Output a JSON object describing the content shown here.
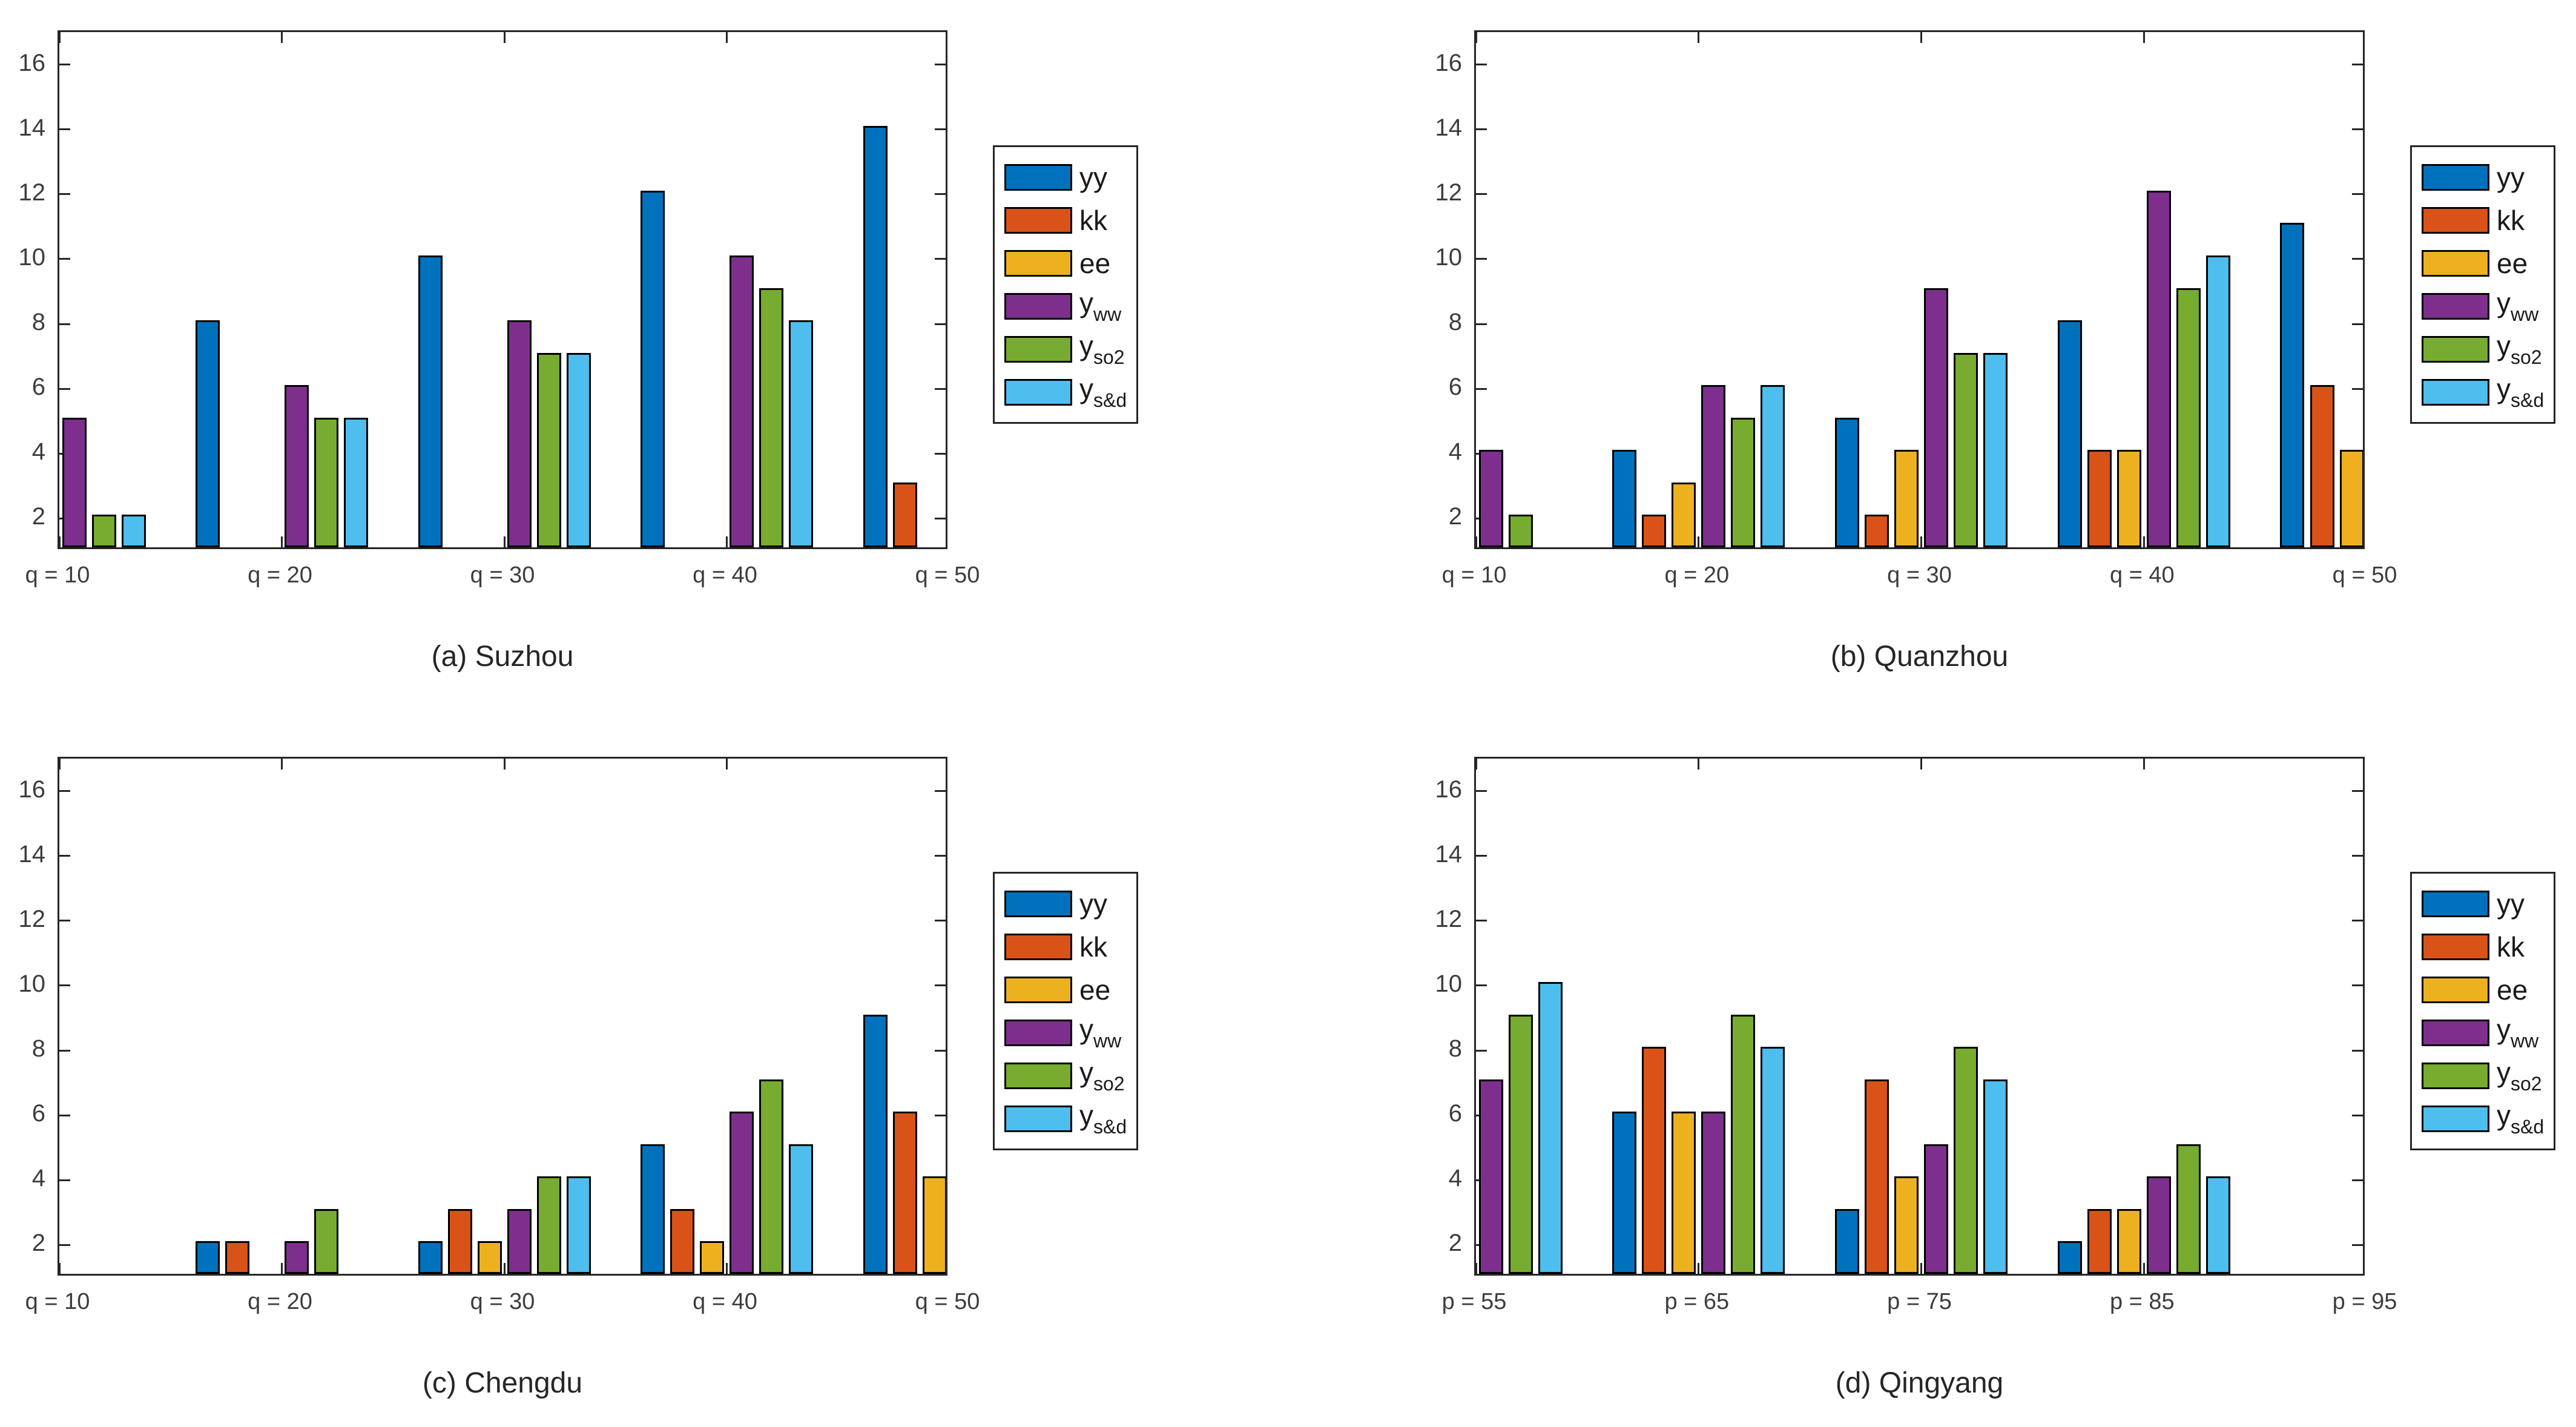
{
  "colors": {
    "background": "#ffffff",
    "axis": "#262626",
    "bar_edge": "#000000",
    "tick_label_text": "#3d3d3d",
    "caption_text": "#262626",
    "legend_text": "#1a1a1a",
    "series": {
      "yy": "#0072BD",
      "kk": "#D95319",
      "ee": "#EDB120",
      "y_ww": "#7E2F8E",
      "y_so2": "#77AC30",
      "y_s&d": "#4DBEEE"
    }
  },
  "legend": {
    "position": "right-outside",
    "entries": [
      {
        "key": "yy",
        "base": "yy",
        "sub": ""
      },
      {
        "key": "kk",
        "base": "kk",
        "sub": ""
      },
      {
        "key": "ee",
        "base": "ee",
        "sub": ""
      },
      {
        "key": "y_ww",
        "base": "y",
        "sub": "ww"
      },
      {
        "key": "y_so2",
        "base": "y",
        "sub": "so2"
      },
      {
        "key": "y_s&d",
        "base": "y",
        "sub": "s&d"
      }
    ]
  },
  "chart_data": [
    {
      "panel": "a",
      "type": "bar",
      "caption": "(a) Suzhou",
      "categories": [
        "q = 10",
        "q = 20",
        "q = 30",
        "q = 40",
        "q = 50"
      ],
      "ylim": [
        1,
        17
      ],
      "yticks": [
        2,
        4,
        6,
        8,
        10,
        12,
        14,
        16
      ],
      "grid": false,
      "series": [
        {
          "name": "yy",
          "values": [
            0,
            8,
            10,
            12,
            14
          ]
        },
        {
          "name": "kk",
          "values": [
            0,
            0,
            0,
            0,
            3
          ]
        },
        {
          "name": "ee",
          "values": [
            0,
            0,
            0,
            0,
            0
          ]
        },
        {
          "name": "y_ww",
          "values": [
            5,
            6,
            8,
            10,
            0
          ]
        },
        {
          "name": "y_so2",
          "values": [
            2,
            5,
            7,
            9,
            0
          ]
        },
        {
          "name": "y_s&d",
          "values": [
            2,
            5,
            7,
            8,
            0
          ]
        }
      ]
    },
    {
      "panel": "b",
      "type": "bar",
      "caption": "(b) Quanzhou",
      "categories": [
        "q = 10",
        "q = 20",
        "q = 30",
        "q = 40",
        "q = 50"
      ],
      "ylim": [
        1,
        17
      ],
      "yticks": [
        2,
        4,
        6,
        8,
        10,
        12,
        14,
        16
      ],
      "grid": false,
      "series": [
        {
          "name": "yy",
          "values": [
            0,
            4,
            5,
            8,
            11
          ]
        },
        {
          "name": "kk",
          "values": [
            0,
            2,
            2,
            4,
            6
          ]
        },
        {
          "name": "ee",
          "values": [
            0,
            3,
            4,
            4,
            4
          ]
        },
        {
          "name": "y_ww",
          "values": [
            4,
            6,
            9,
            12,
            0
          ]
        },
        {
          "name": "y_so2",
          "values": [
            2,
            5,
            7,
            9,
            0
          ]
        },
        {
          "name": "y_s&d",
          "values": [
            0,
            6,
            7,
            10,
            0
          ]
        }
      ]
    },
    {
      "panel": "c",
      "type": "bar",
      "caption": "(c) Chengdu",
      "categories": [
        "q = 10",
        "q = 20",
        "q = 30",
        "q = 40",
        "q = 50"
      ],
      "ylim": [
        1,
        17
      ],
      "yticks": [
        2,
        4,
        6,
        8,
        10,
        12,
        14,
        16
      ],
      "grid": false,
      "series": [
        {
          "name": "yy",
          "values": [
            0,
            2,
            2,
            5,
            9
          ]
        },
        {
          "name": "kk",
          "values": [
            0,
            2,
            3,
            3,
            6
          ]
        },
        {
          "name": "ee",
          "values": [
            0,
            0,
            2,
            2,
            4
          ]
        },
        {
          "name": "y_ww",
          "values": [
            0,
            2,
            3,
            6,
            0
          ]
        },
        {
          "name": "y_so2",
          "values": [
            0,
            3,
            4,
            7,
            0
          ]
        },
        {
          "name": "y_s&d",
          "values": [
            0,
            0,
            4,
            5,
            0
          ]
        }
      ]
    },
    {
      "panel": "d",
      "type": "bar",
      "caption": "(d) Qingyang",
      "categories": [
        "p = 55",
        "p = 65",
        "p = 75",
        "p = 85",
        "p = 95"
      ],
      "ylim": [
        1,
        17
      ],
      "yticks": [
        2,
        4,
        6,
        8,
        10,
        12,
        14,
        16
      ],
      "grid": false,
      "series": [
        {
          "name": "yy",
          "values": [
            0,
            6,
            3,
            2,
            0
          ]
        },
        {
          "name": "kk",
          "values": [
            0,
            8,
            7,
            3,
            0
          ]
        },
        {
          "name": "ee",
          "values": [
            0,
            6,
            4,
            3,
            0
          ]
        },
        {
          "name": "y_ww",
          "values": [
            7,
            6,
            5,
            4,
            0
          ]
        },
        {
          "name": "y_so2",
          "values": [
            9,
            9,
            8,
            5,
            0
          ]
        },
        {
          "name": "y_s&d",
          "values": [
            10,
            8,
            7,
            4,
            0
          ]
        }
      ]
    }
  ]
}
